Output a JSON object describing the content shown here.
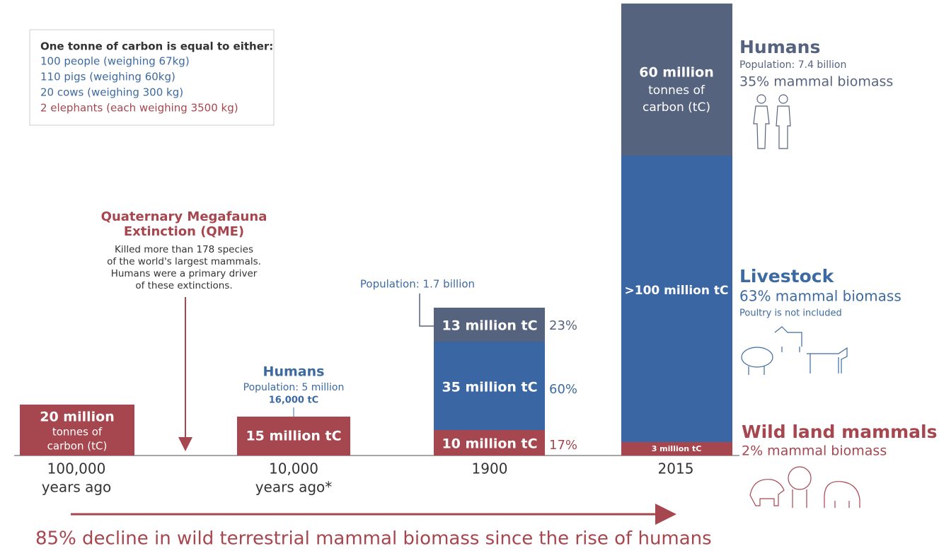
{
  "legend_box": {
    "title": "One tonne of carbon is equal to either:",
    "lines": [
      "100 people (weighing 67kg)",
      "110 pigs (weighing 60kg)",
      "20 cows (weighing 300 kg)",
      "2 elephants (each weighing 3500 kg)"
    ]
  },
  "qme": {
    "title_lines": [
      "Quaternary Megafauna",
      "Extinction (QME)"
    ],
    "description_lines": [
      "Killed more than 178 species",
      "of the world's largest mammals.",
      "Humans were a primary driver",
      "of these extinctions."
    ]
  },
  "periods": [
    {
      "label_lines": [
        "100,000",
        "years ago"
      ],
      "bar_lines": [
        "20 million",
        "tonnes of",
        "carbon (tC)"
      ]
    },
    {
      "label_lines": [
        "10,000",
        "years ago*"
      ],
      "group": "Humans",
      "population": "Population: 5 million",
      "human_mass": "16,000 tC",
      "bar": "15 million tC"
    },
    {
      "label_lines": [
        "1900"
      ],
      "population": "Population: 1.7 billion",
      "segments": [
        {
          "text": "13 million tC",
          "share": "23%"
        },
        {
          "text": "35 million tC",
          "share": "60%"
        },
        {
          "text": "10 million tC",
          "share": "17%"
        }
      ]
    },
    {
      "label_lines": [
        "2015"
      ],
      "humans_lines": [
        "60 million",
        "tonnes of",
        "carbon (tC)"
      ],
      "livestock": ">100 million tC",
      "wild": "3 million tC"
    }
  ],
  "groups": {
    "humans": {
      "name": "Humans",
      "population": "Population: 7.4 billion",
      "share": "35% mammal biomass"
    },
    "livestock": {
      "name": "Livestock",
      "share": "63% mammal biomass",
      "note": "Poultry is not included"
    },
    "wild": {
      "name": "Wild land mammals",
      "share": "2% mammal biomass"
    }
  },
  "footer": "85% decline in wild terrestrial mammal biomass since the rise of humans"
}
